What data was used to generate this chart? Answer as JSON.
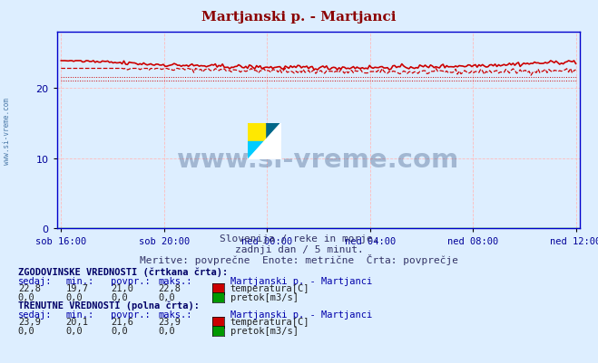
{
  "title": "Martjanski p. - Martjanci",
  "title_color": "#8B0000",
  "bg_color": "#ddeeff",
  "plot_bg_color": "#ddeeff",
  "grid_color_v": "#ffbbbb",
  "grid_color_h": "#ffbbbb",
  "axis_color": "#0000cc",
  "x_tick_color": "#000099",
  "y_tick_color": "#000099",
  "x_tick_labels": [
    "sob 16:00",
    "sob 20:00",
    "ned 00:00",
    "ned 04:00",
    "ned 08:00",
    "ned 12:00"
  ],
  "x_tick_positions": [
    0,
    48,
    96,
    144,
    192,
    240
  ],
  "ylim": [
    0,
    28
  ],
  "y_ticks": [
    0,
    10,
    20
  ],
  "subtitle1": "Slovenija / reke in morje.",
  "subtitle2": "zadnji dan / 5 minut.",
  "subtitle3": "Meritve: povprečne  Enote: metrične  Črta: povprečje",
  "watermark": "www.si-vreme.com",
  "watermark_color": "#1a3a6a",
  "watermark_alpha": 0.3,
  "temp_color": "#cc0000",
  "pretok_color": "#009900",
  "hist_sedaj": "22,8",
  "hist_min": "19,7",
  "hist_povpr": "21,0",
  "hist_maks": "22,8",
  "curr_sedaj": "23,9",
  "curr_min": "20,1",
  "curr_povpr": "21,6",
  "curr_maks": "23,9",
  "n_points": 288,
  "avg_val": 21.0,
  "avg_curr_val": 21.6
}
